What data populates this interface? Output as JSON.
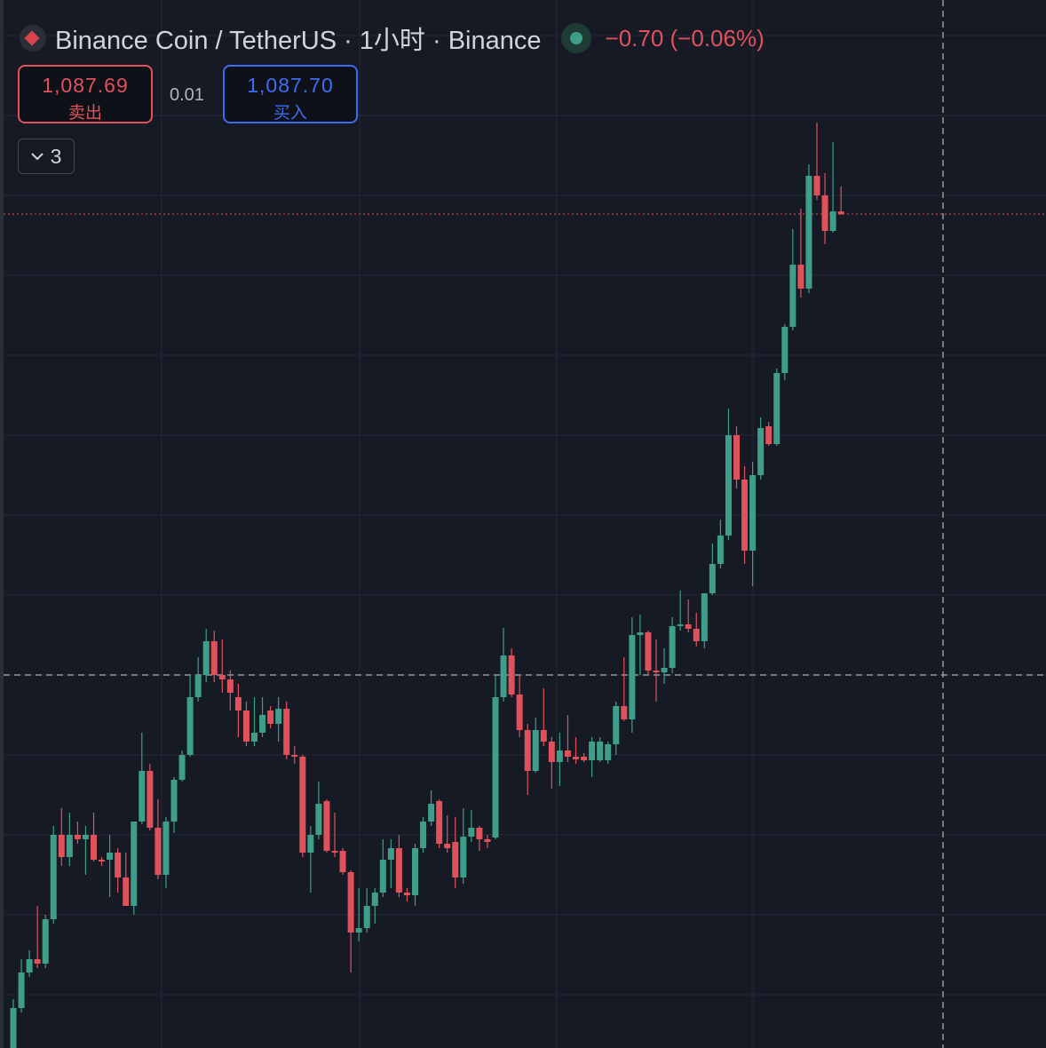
{
  "header": {
    "title": "Binance Coin / TetherUS · 1小时 · Binance",
    "change": "−0.70 (−0.06%)",
    "sell_price": "1,087.69",
    "sell_label": "卖出",
    "spread": "0.01",
    "buy_price": "1,087.70",
    "buy_label": "买入",
    "indicator_count": "3"
  },
  "chart_data": {
    "type": "candlestick",
    "ylim": [
      993.8,
      1111.8
    ],
    "up_color": "#3f9e8a",
    "down_color": "#e0525b",
    "grid": true,
    "ohlc": [
      [
        993.8,
        999.3,
        993.8,
        998.3
      ],
      [
        998.3,
        1003.8,
        997.8,
        1002.3
      ],
      [
        1002.3,
        1004.8,
        1001.8,
        1003.8
      ],
      [
        1003.8,
        1009.8,
        1002.8,
        1003.3
      ],
      [
        1003.3,
        1008.8,
        1002.8,
        1008.3
      ],
      [
        1008.3,
        1018.8,
        1007.8,
        1017.8
      ],
      [
        1017.8,
        1020.8,
        1014.3,
        1015.3
      ],
      [
        1015.3,
        1020.3,
        1014.3,
        1017.8
      ],
      [
        1017.8,
        1019.3,
        1016.8,
        1017.3
      ],
      [
        1017.3,
        1018.8,
        1013.3,
        1017.8
      ],
      [
        1017.8,
        1020.3,
        1014.8,
        1015.0
      ],
      [
        1015.0,
        1015.3,
        1014.3,
        1014.8
      ],
      [
        1015.0,
        1017.8,
        1010.8,
        1015.8
      ],
      [
        1015.8,
        1016.3,
        1011.3,
        1013.0
      ],
      [
        1013.0,
        1015.8,
        1009.8,
        1009.8
      ],
      [
        1009.8,
        1019.3,
        1008.8,
        1019.3
      ],
      [
        1019.3,
        1029.3,
        1019.0,
        1025.0
      ],
      [
        1025.0,
        1025.8,
        1018.3,
        1018.6
      ],
      [
        1018.6,
        1021.8,
        1012.8,
        1013.3
      ],
      [
        1013.3,
        1019.8,
        1011.8,
        1019.3
      ],
      [
        1019.3,
        1024.3,
        1018.0,
        1024.0
      ],
      [
        1024.0,
        1027.3,
        1023.8,
        1026.8
      ],
      [
        1026.8,
        1035.8,
        1026.6,
        1033.3
      ],
      [
        1033.3,
        1037.8,
        1032.8,
        1035.8
      ],
      [
        1035.8,
        1041.0,
        1035.0,
        1039.6
      ],
      [
        1039.6,
        1040.8,
        1035.0,
        1035.8
      ],
      [
        1035.8,
        1039.8,
        1033.8,
        1035.3
      ],
      [
        1035.3,
        1036.3,
        1031.8,
        1033.8
      ],
      [
        1033.3,
        1034.8,
        1028.8,
        1031.8
      ],
      [
        1031.8,
        1032.8,
        1027.8,
        1028.3
      ],
      [
        1028.3,
        1033.3,
        1027.8,
        1029.3
      ],
      [
        1029.3,
        1033.3,
        1028.8,
        1031.3
      ],
      [
        1031.8,
        1032.3,
        1029.8,
        1030.3
      ],
      [
        1030.3,
        1033.3,
        1028.3,
        1032.0
      ],
      [
        1032.0,
        1032.8,
        1026.3,
        1026.8
      ],
      [
        1026.8,
        1027.8,
        1025.8,
        1026.6
      ],
      [
        1026.6,
        1026.8,
        1015.3,
        1015.8
      ],
      [
        1015.8,
        1018.8,
        1011.3,
        1017.8
      ],
      [
        1017.8,
        1023.8,
        1017.3,
        1021.3
      ],
      [
        1021.6,
        1021.8,
        1015.8,
        1016.0
      ],
      [
        1016.0,
        1020.3,
        1015.3,
        1015.8
      ],
      [
        1016.0,
        1016.3,
        1013.3,
        1013.6
      ],
      [
        1013.6,
        1013.8,
        1002.3,
        1006.8
      ],
      [
        1006.8,
        1011.8,
        1005.8,
        1007.3
      ],
      [
        1007.3,
        1011.8,
        1006.8,
        1009.8
      ],
      [
        1009.8,
        1011.8,
        1007.8,
        1011.3
      ],
      [
        1011.3,
        1017.3,
        1010.8,
        1015.0
      ],
      [
        1015.0,
        1017.3,
        1011.8,
        1016.3
      ],
      [
        1016.3,
        1017.8,
        1010.8,
        1011.3
      ],
      [
        1011.3,
        1011.8,
        1010.3,
        1011.0
      ],
      [
        1011.0,
        1016.8,
        1009.8,
        1016.3
      ],
      [
        1016.3,
        1019.8,
        1015.8,
        1019.3
      ],
      [
        1019.3,
        1022.8,
        1018.8,
        1021.3
      ],
      [
        1021.6,
        1021.8,
        1016.3,
        1016.8
      ],
      [
        1016.8,
        1020.0,
        1015.8,
        1016.3
      ],
      [
        1017.0,
        1019.8,
        1011.8,
        1013.0
      ],
      [
        1013.0,
        1020.8,
        1012.3,
        1017.6
      ],
      [
        1017.6,
        1020.6,
        1017.0,
        1018.6
      ],
      [
        1018.6,
        1018.8,
        1016.0,
        1017.3
      ],
      [
        1017.3,
        1017.8,
        1016.3,
        1017.0
      ],
      [
        1017.5,
        1035.8,
        1017.3,
        1033.3
      ],
      [
        1033.3,
        1041.1,
        1032.8,
        1038.0
      ],
      [
        1038.0,
        1038.8,
        1033.3,
        1033.6
      ],
      [
        1033.6,
        1035.8,
        1028.8,
        1029.6
      ],
      [
        1029.6,
        1030.3,
        1022.3,
        1025.0
      ],
      [
        1025.0,
        1031.0,
        1024.8,
        1029.6
      ],
      [
        1029.6,
        1034.3,
        1027.8,
        1028.3
      ],
      [
        1028.3,
        1028.8,
        1023.0,
        1026.0
      ],
      [
        1026.0,
        1029.3,
        1023.3,
        1027.3
      ],
      [
        1027.3,
        1031.3,
        1026.0,
        1026.6
      ],
      [
        1026.6,
        1028.8,
        1025.8,
        1026.3
      ],
      [
        1026.6,
        1027.0,
        1026.0,
        1026.2
      ],
      [
        1026.2,
        1028.8,
        1024.3,
        1028.3
      ],
      [
        1026.2,
        1028.8,
        1026.0,
        1028.3
      ],
      [
        1026.2,
        1028.3,
        1025.8,
        1028.0
      ],
      [
        1028.0,
        1032.8,
        1026.8,
        1032.3
      ],
      [
        1032.3,
        1037.8,
        1030.6,
        1030.8
      ],
      [
        1030.8,
        1042.3,
        1029.3,
        1040.3
      ],
      [
        1040.3,
        1042.6,
        1035.8,
        1040.6
      ],
      [
        1040.6,
        1040.8,
        1035.8,
        1036.3
      ],
      [
        1036.3,
        1039.8,
        1032.8,
        1036.1
      ],
      [
        1036.1,
        1038.8,
        1034.8,
        1036.6
      ],
      [
        1036.6,
        1042.3,
        1036.0,
        1041.3
      ],
      [
        1041.3,
        1045.3,
        1040.8,
        1041.5
      ],
      [
        1041.5,
        1044.3,
        1040.6,
        1041.0
      ],
      [
        1041.0,
        1042.8,
        1039.0,
        1039.6
      ],
      [
        1039.6,
        1045.0,
        1038.8,
        1045.0
      ],
      [
        1045.0,
        1050.6,
        1044.8,
        1048.3
      ],
      [
        1048.3,
        1053.3,
        1047.8,
        1051.5
      ],
      [
        1051.5,
        1065.8,
        1051.0,
        1062.8
      ],
      [
        1062.8,
        1063.8,
        1056.8,
        1057.8
      ],
      [
        1057.8,
        1059.3,
        1048.3,
        1049.8
      ],
      [
        1049.8,
        1059.8,
        1045.8,
        1058.3
      ],
      [
        1058.3,
        1064.8,
        1057.8,
        1063.6
      ],
      [
        1063.8,
        1064.3,
        1061.6,
        1061.8
      ],
      [
        1061.8,
        1070.3,
        1061.6,
        1069.8
      ],
      [
        1069.8,
        1075.3,
        1069.0,
        1075.0
      ],
      [
        1075.0,
        1086.0,
        1074.6,
        1082.0
      ],
      [
        1082.0,
        1088.3,
        1078.3,
        1079.3
      ],
      [
        1079.3,
        1093.3,
        1078.8,
        1092.0
      ],
      [
        1092.0,
        1098.0,
        1089.3,
        1089.8
      ],
      [
        1089.8,
        1092.3,
        1084.3,
        1085.8
      ],
      [
        1085.8,
        1095.8,
        1085.6,
        1088.0
      ],
      [
        1088.0,
        1090.8,
        1087.6,
        1087.7
      ]
    ]
  }
}
